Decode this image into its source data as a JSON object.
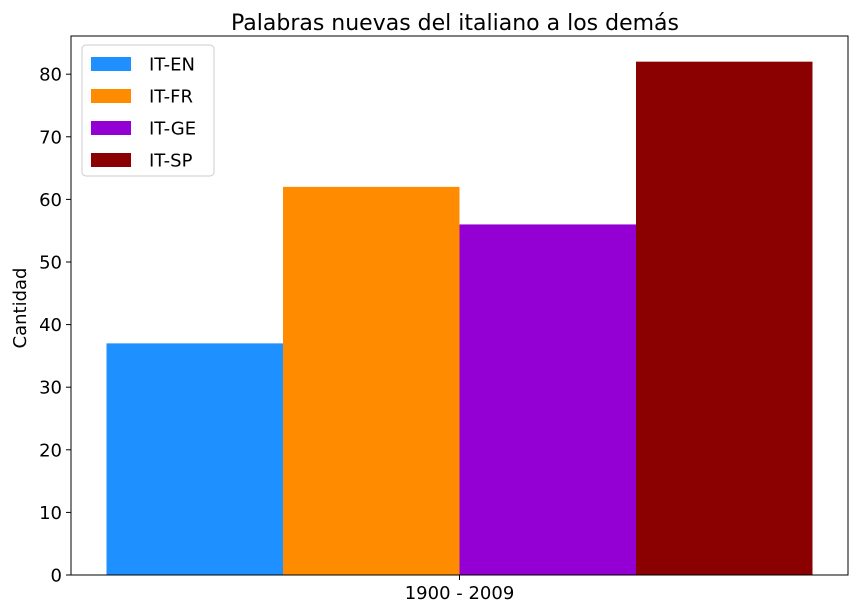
{
  "chart_data": {
    "type": "bar",
    "title": "Palabras nuevas del italiano a los demás",
    "xlabel": "",
    "ylabel": "Cantidad",
    "categories": [
      "1900 - 2009"
    ],
    "series": [
      {
        "name": "IT-EN",
        "values": [
          37
        ],
        "color": "#1e90ff"
      },
      {
        "name": "IT-FR",
        "values": [
          62
        ],
        "color": "#ff8c00"
      },
      {
        "name": "IT-GE",
        "values": [
          56
        ],
        "color": "#9400d3"
      },
      {
        "name": "IT-SP",
        "values": [
          82
        ],
        "color": "#8b0000"
      }
    ],
    "ylim": [
      0,
      86.1
    ],
    "yticks": [
      "0",
      "10",
      "20",
      "30",
      "40",
      "50",
      "60",
      "70",
      "80"
    ],
    "grid": false,
    "legend_position": "top-left"
  }
}
